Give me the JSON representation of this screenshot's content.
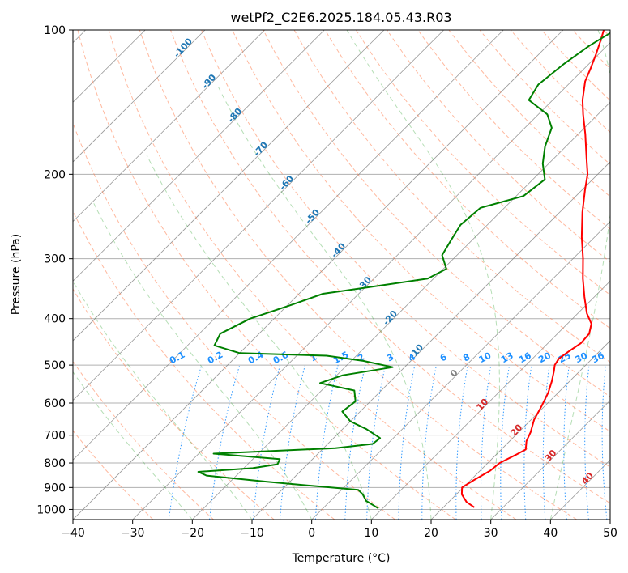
{
  "chart_data": {
    "type": "line",
    "title": "wetPf2_C2E6.2025.184.05.43.R03",
    "xlabel": "Temperature (°C)",
    "ylabel": "Pressure (hPa)",
    "xlim": [
      -40,
      50
    ],
    "ylim": [
      1050,
      100
    ],
    "y_scale": "log",
    "grid": true,
    "x_ticks": [
      -40,
      -30,
      -20,
      -10,
      0,
      10,
      20,
      30,
      40,
      50
    ],
    "y_ticks": [
      1000,
      900,
      800,
      700,
      600,
      500,
      400,
      300,
      200,
      100
    ],
    "skew_note": "isotherms skewed",
    "series": [
      {
        "color": "#ff0000",
        "values": [
          {
            "p": 990,
            "t": 25.2
          },
          {
            "p": 965,
            "t": 23.0
          },
          {
            "p": 930,
            "t": 20.9
          },
          {
            "p": 900,
            "t": 19.8
          },
          {
            "p": 870,
            "t": 20.5
          },
          {
            "p": 830,
            "t": 21.7
          },
          {
            "p": 800,
            "t": 22.0
          },
          {
            "p": 770,
            "t": 23.3
          },
          {
            "p": 750,
            "t": 24.1
          },
          {
            "p": 720,
            "t": 22.8
          },
          {
            "p": 690,
            "t": 22.0
          },
          {
            "p": 650,
            "t": 20.5
          },
          {
            "p": 610,
            "t": 19.5
          },
          {
            "p": 570,
            "t": 18.3
          },
          {
            "p": 540,
            "t": 17.0
          },
          {
            "p": 515,
            "t": 15.7
          },
          {
            "p": 500,
            "t": 14.8
          },
          {
            "p": 485,
            "t": 14.4
          },
          {
            "p": 470,
            "t": 14.8
          },
          {
            "p": 450,
            "t": 15.5
          },
          {
            "p": 430,
            "t": 15.3
          },
          {
            "p": 410,
            "t": 14.0
          },
          {
            "p": 390,
            "t": 11.5
          },
          {
            "p": 360,
            "t": 8.3
          },
          {
            "p": 330,
            "t": 5.0
          },
          {
            "p": 300,
            "t": 1.7
          },
          {
            "p": 270,
            "t": -2.2
          },
          {
            "p": 240,
            "t": -6.2
          },
          {
            "p": 215,
            "t": -9.6
          },
          {
            "p": 200,
            "t": -11.7
          },
          {
            "p": 185,
            "t": -14.6
          },
          {
            "p": 165,
            "t": -18.8
          },
          {
            "p": 150,
            "t": -22.5
          },
          {
            "p": 140,
            "t": -25.0
          },
          {
            "p": 128,
            "t": -27.7
          },
          {
            "p": 120,
            "t": -29.0
          },
          {
            "p": 112,
            "t": -30.5
          },
          {
            "p": 105,
            "t": -32.0
          },
          {
            "p": 100,
            "t": -33.2
          }
        ]
      },
      {
        "color": "#008000",
        "values": [
          {
            "p": 995,
            "t": 9.3
          },
          {
            "p": 960,
            "t": 6.0
          },
          {
            "p": 930,
            "t": 4.3
          },
          {
            "p": 910,
            "t": 2.8
          },
          {
            "p": 895,
            "t": -4.5
          },
          {
            "p": 875,
            "t": -14.0
          },
          {
            "p": 850,
            "t": -25.0
          },
          {
            "p": 835,
            "t": -27.0
          },
          {
            "p": 820,
            "t": -18.5
          },
          {
            "p": 805,
            "t": -15.0
          },
          {
            "p": 785,
            "t": -15.5
          },
          {
            "p": 765,
            "t": -27.5
          },
          {
            "p": 745,
            "t": -8.0
          },
          {
            "p": 730,
            "t": -2.5
          },
          {
            "p": 710,
            "t": -2.2
          },
          {
            "p": 680,
            "t": -6.0
          },
          {
            "p": 655,
            "t": -10.0
          },
          {
            "p": 625,
            "t": -13.0
          },
          {
            "p": 595,
            "t": -12.5
          },
          {
            "p": 565,
            "t": -14.5
          },
          {
            "p": 545,
            "t": -21.5
          },
          {
            "p": 525,
            "t": -19.0
          },
          {
            "p": 505,
            "t": -12.0
          },
          {
            "p": 490,
            "t": -18.0
          },
          {
            "p": 478,
            "t": -25.0
          },
          {
            "p": 472,
            "t": -40.0
          },
          {
            "p": 455,
            "t": -45.5
          },
          {
            "p": 430,
            "t": -46.5
          },
          {
            "p": 400,
            "t": -44.0
          },
          {
            "p": 375,
            "t": -39.5
          },
          {
            "p": 355,
            "t": -36.0
          },
          {
            "p": 345,
            "t": -30.0
          },
          {
            "p": 330,
            "t": -21.0
          },
          {
            "p": 315,
            "t": -19.5
          },
          {
            "p": 295,
            "t": -22.5
          },
          {
            "p": 275,
            "t": -23.5
          },
          {
            "p": 255,
            "t": -24.5
          },
          {
            "p": 235,
            "t": -24.0
          },
          {
            "p": 222,
            "t": -18.8
          },
          {
            "p": 205,
            "t": -18.0
          },
          {
            "p": 190,
            "t": -21.0
          },
          {
            "p": 175,
            "t": -23.5
          },
          {
            "p": 160,
            "t": -25.5
          },
          {
            "p": 150,
            "t": -28.5
          },
          {
            "p": 140,
            "t": -34.0
          },
          {
            "p": 130,
            "t": -35.0
          },
          {
            "p": 118,
            "t": -34.2
          },
          {
            "p": 108,
            "t": -33.0
          },
          {
            "p": 100,
            "t": -31.3
          }
        ]
      }
    ]
  },
  "overlay_labels": {
    "dry_adiabats": [
      "-100",
      "-90",
      "-80",
      "-70",
      "-60",
      "-50",
      "-40",
      "-30",
      "-20",
      "-10",
      "0",
      "10",
      "20",
      "30",
      "40"
    ],
    "mixing_ratios": [
      "0.1",
      "0.2",
      "0.4",
      "0.6",
      "1",
      "1.5",
      "2",
      "3",
      "4",
      "6",
      "8",
      "10",
      "13",
      "16",
      "20",
      "25",
      "30",
      "36"
    ]
  },
  "colors": {
    "dry_adiabat": "#ff7f50",
    "moist_adiabat": "#2ca02c",
    "mixing_ratio": "#1e90ff",
    "isotherm": "#808080",
    "adiabat_label_cold": "#1f77b4",
    "adiabat_label_warm": "#d62728",
    "adiabat_label_zero": "#808080"
  }
}
